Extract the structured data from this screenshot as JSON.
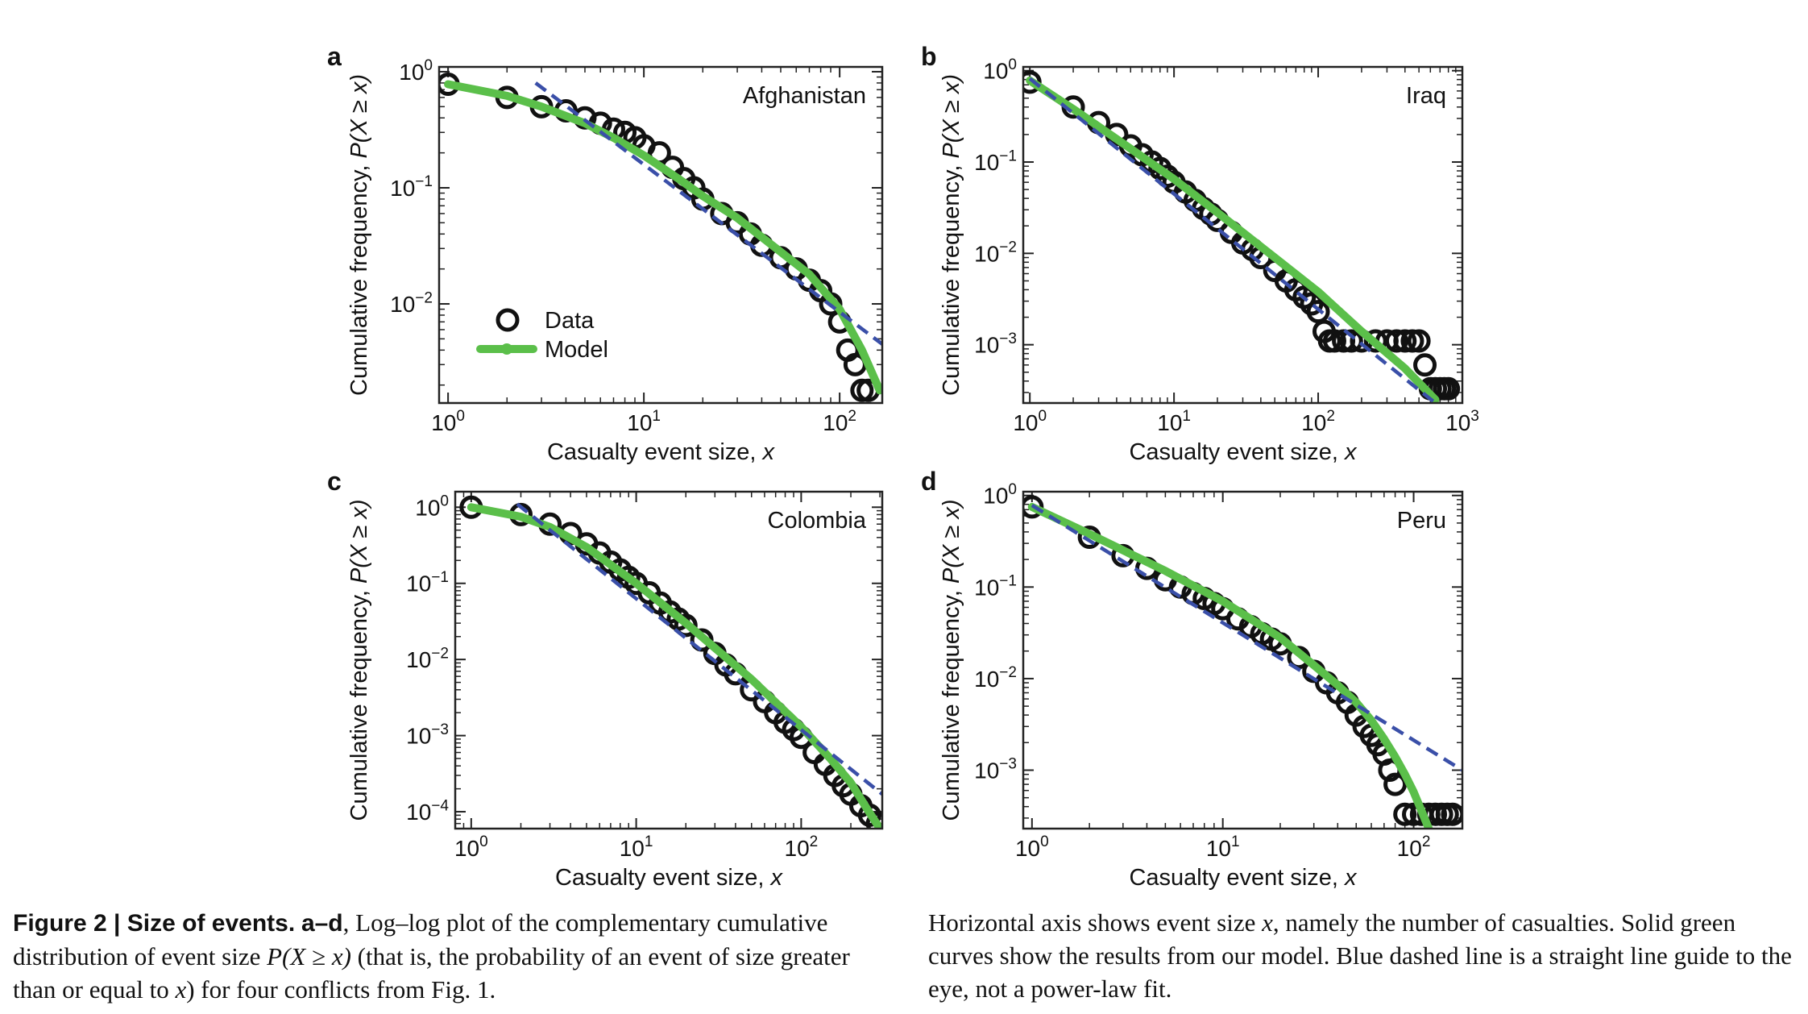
{
  "caption": {
    "fig_label": "Figure 2",
    "sep": " | ",
    "heading": "Size of events.",
    "panels_ref": "a–d",
    "part1": ", Log–log plot of the complementary cumulative distribution of event size ",
    "expr": "P(X ≥ x)",
    "part2": " (that is, the probability of an event of size greater than or equal to ",
    "x": "x",
    "part3": ") for four conflicts from Fig. 1.",
    "right1": "Horizontal axis shows event size ",
    "right_x": "x",
    "right2": ", namely the number of casualties. Solid green curves show the results from our model. Blue dashed line is a straight line guide to the eye, not a power-law fit."
  },
  "legend": {
    "data_label": "Data",
    "model_label": "Model"
  },
  "colors": {
    "data": "#111111",
    "model": "#5bbf4a",
    "guide": "#3a4fa8",
    "axis": "#222222"
  },
  "chart_data": [
    {
      "panel": "a",
      "type": "scatter",
      "title": "Afghanistan",
      "xlabel": "Casualty event size, ",
      "xlabel_var": "x",
      "ylabel": "Cumulative frequency, ",
      "ylabel_expr": "P(X ≥ x)",
      "xscale": "log",
      "yscale": "log",
      "xlim": [
        0.9,
        165
      ],
      "ylim": [
        0.0014,
        1.1
      ],
      "xticks": [
        1,
        10,
        100
      ],
      "xticklabels": [
        "10^0",
        "10^1",
        "10^2"
      ],
      "yticks": [
        1,
        0.1,
        0.01
      ],
      "yticklabels": [
        "10^0",
        "10^-1",
        "10^-2"
      ],
      "legend": "lower-left",
      "series": [
        {
          "kind": "data",
          "x": [
            1,
            2,
            3,
            4,
            5,
            6,
            7,
            8,
            9,
            10,
            12,
            14,
            16,
            18,
            20,
            25,
            30,
            35,
            40,
            50,
            60,
            70,
            80,
            90,
            100,
            110,
            120,
            130,
            140
          ],
          "y": [
            0.78,
            0.6,
            0.5,
            0.46,
            0.4,
            0.36,
            0.32,
            0.3,
            0.27,
            0.23,
            0.2,
            0.15,
            0.12,
            0.1,
            0.08,
            0.06,
            0.05,
            0.04,
            0.032,
            0.025,
            0.02,
            0.016,
            0.013,
            0.01,
            0.007,
            0.004,
            0.003,
            0.0018,
            0.0018
          ]
        },
        {
          "kind": "model",
          "x": [
            1,
            2,
            3,
            5,
            7,
            10,
            15,
            20,
            30,
            50,
            70,
            100,
            130,
            160
          ],
          "y": [
            0.78,
            0.62,
            0.5,
            0.36,
            0.27,
            0.19,
            0.12,
            0.085,
            0.055,
            0.028,
            0.018,
            0.009,
            0.004,
            0.0018
          ]
        },
        {
          "kind": "guide",
          "x": [
            2.8,
            165
          ],
          "y": [
            0.8,
            0.0045
          ]
        }
      ]
    },
    {
      "panel": "b",
      "type": "scatter",
      "title": "Iraq",
      "xlabel": "Casualty event size, ",
      "xlabel_var": "x",
      "ylabel": "Cumulative frequency, ",
      "ylabel_expr": "P(X ≥ x)",
      "xscale": "log",
      "yscale": "log",
      "xlim": [
        0.9,
        1000
      ],
      "ylim": [
        0.00023,
        1.1
      ],
      "xticks": [
        1,
        10,
        100,
        1000
      ],
      "xticklabels": [
        "10^0",
        "10^1",
        "10^2",
        "10^3"
      ],
      "yticks": [
        1,
        0.1,
        0.01,
        0.001
      ],
      "yticklabels": [
        "10^0",
        "10^-1",
        "10^-2",
        "10^-3"
      ],
      "series": [
        {
          "kind": "data",
          "x": [
            1,
            2,
            3,
            4,
            5,
            6,
            7,
            8,
            9,
            10,
            12,
            14,
            16,
            18,
            20,
            25,
            30,
            35,
            40,
            50,
            60,
            70,
            80,
            90,
            100,
            110,
            120,
            130,
            150,
            170,
            200,
            250,
            300,
            350,
            400,
            450,
            500,
            550,
            600,
            650,
            700,
            750,
            800
          ],
          "y": [
            0.75,
            0.4,
            0.27,
            0.2,
            0.15,
            0.12,
            0.1,
            0.085,
            0.07,
            0.06,
            0.047,
            0.038,
            0.031,
            0.027,
            0.023,
            0.017,
            0.013,
            0.011,
            0.009,
            0.0065,
            0.005,
            0.004,
            0.0033,
            0.0028,
            0.0023,
            0.0014,
            0.0011,
            0.0011,
            0.0011,
            0.0011,
            0.0011,
            0.0011,
            0.0011,
            0.0011,
            0.0011,
            0.0011,
            0.0011,
            0.0006,
            0.00033,
            0.00033,
            0.00033,
            0.00033,
            0.00033
          ]
        },
        {
          "kind": "model",
          "x": [
            1,
            2,
            5,
            10,
            20,
            50,
            100,
            200,
            400,
            650
          ],
          "y": [
            0.78,
            0.38,
            0.14,
            0.065,
            0.028,
            0.009,
            0.0038,
            0.0014,
            0.00055,
            0.00025
          ]
        },
        {
          "kind": "guide",
          "x": [
            1,
            650
          ],
          "y": [
            0.82,
            0.00023
          ]
        }
      ]
    },
    {
      "panel": "c",
      "type": "scatter",
      "title": "Colombia",
      "xlabel": "Casualty event size, ",
      "xlabel_var": "x",
      "ylabel": "Cumulative frequency, ",
      "ylabel_expr": "P(X ≥ x)",
      "xscale": "log",
      "yscale": "log",
      "xlim": [
        0.8,
        310
      ],
      "ylim": [
        6e-05,
        1.6
      ],
      "xticks": [
        1,
        10,
        100
      ],
      "xticklabels": [
        "10^0",
        "10^1",
        "10^2"
      ],
      "yticks": [
        1,
        0.1,
        0.01,
        0.001,
        0.0001
      ],
      "yticklabels": [
        "10^0",
        "10^-1",
        "10^-2",
        "10^-3",
        "10^-4"
      ],
      "series": [
        {
          "kind": "data",
          "x": [
            1,
            2,
            3,
            4,
            5,
            6,
            7,
            8,
            9,
            10,
            12,
            14,
            16,
            18,
            20,
            25,
            30,
            35,
            40,
            50,
            60,
            70,
            80,
            90,
            100,
            120,
            140,
            160,
            180,
            200,
            230,
            260,
            290
          ],
          "y": [
            1.0,
            0.8,
            0.6,
            0.45,
            0.33,
            0.25,
            0.19,
            0.15,
            0.12,
            0.1,
            0.075,
            0.055,
            0.042,
            0.034,
            0.028,
            0.018,
            0.012,
            0.0085,
            0.0065,
            0.004,
            0.0028,
            0.002,
            0.0015,
            0.0012,
            0.00095,
            0.0006,
            0.00042,
            0.0003,
            0.00022,
            0.00017,
            0.00012,
            9e-05,
            7e-05
          ]
        },
        {
          "kind": "model",
          "x": [
            1,
            2,
            3,
            5,
            10,
            20,
            50,
            100,
            150,
            200,
            250,
            300
          ],
          "y": [
            1.0,
            0.75,
            0.55,
            0.3,
            0.1,
            0.03,
            0.0055,
            0.0013,
            0.0005,
            0.00024,
            0.00011,
            6e-05
          ]
        },
        {
          "kind": "guide",
          "x": [
            1.9,
            310
          ],
          "y": [
            1.1,
            0.00017
          ]
        }
      ]
    },
    {
      "panel": "d",
      "type": "scatter",
      "title": "Peru",
      "xlabel": "Casualty event size, ",
      "xlabel_var": "x",
      "ylabel": "Cumulative frequency, ",
      "ylabel_expr": "P(X ≥ x)",
      "xscale": "log",
      "yscale": "log",
      "xlim": [
        0.9,
        180
      ],
      "ylim": [
        0.00023,
        1.1
      ],
      "xticks": [
        1,
        10,
        100
      ],
      "xticklabels": [
        "10^0",
        "10^1",
        "10^2"
      ],
      "yticks": [
        1,
        0.1,
        0.01,
        0.001
      ],
      "yticklabels": [
        "10^0",
        "10^-1",
        "10^-2",
        "10^-3"
      ],
      "series": [
        {
          "kind": "data",
          "x": [
            1,
            2,
            3,
            4,
            5,
            6,
            7,
            8,
            9,
            10,
            12,
            14,
            16,
            18,
            20,
            25,
            30,
            35,
            40,
            45,
            50,
            55,
            60,
            65,
            70,
            75,
            80,
            90,
            100,
            110,
            120,
            130,
            140,
            150,
            160
          ],
          "y": [
            0.75,
            0.35,
            0.22,
            0.16,
            0.12,
            0.1,
            0.085,
            0.075,
            0.066,
            0.058,
            0.045,
            0.037,
            0.031,
            0.027,
            0.024,
            0.017,
            0.012,
            0.009,
            0.007,
            0.0055,
            0.004,
            0.003,
            0.0024,
            0.0019,
            0.0015,
            0.001,
            0.0007,
            0.00033,
            0.00033,
            0.00033,
            0.00033,
            0.00033,
            0.00033,
            0.00033,
            0.00033
          ]
        },
        {
          "kind": "model",
          "x": [
            1,
            2,
            5,
            10,
            20,
            30,
            40,
            50,
            60,
            70,
            80,
            90,
            100,
            110,
            120
          ],
          "y": [
            0.75,
            0.38,
            0.15,
            0.07,
            0.028,
            0.014,
            0.0085,
            0.0055,
            0.0035,
            0.0022,
            0.0014,
            0.0009,
            0.00058,
            0.00036,
            0.00023
          ]
        },
        {
          "kind": "guide",
          "x": [
            1,
            180
          ],
          "y": [
            0.78,
            0.001
          ]
        }
      ]
    }
  ]
}
